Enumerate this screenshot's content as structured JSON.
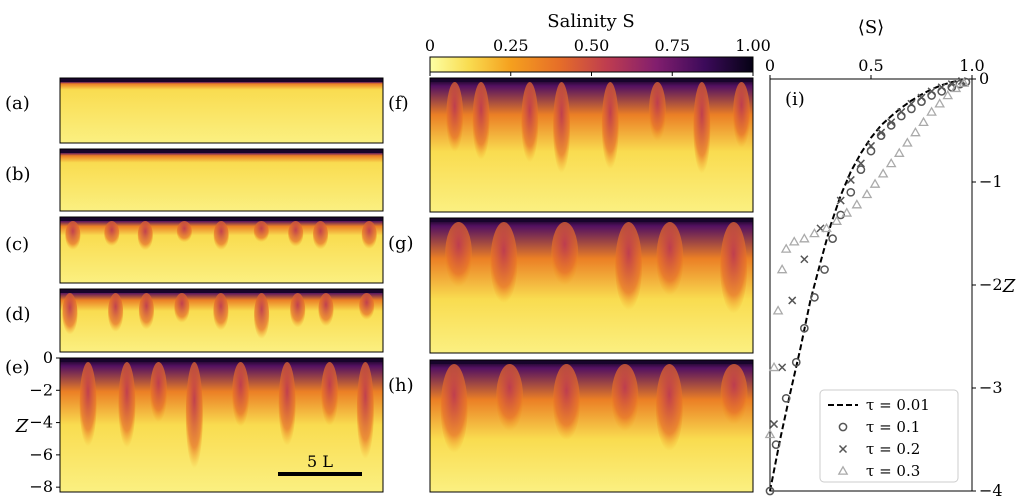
{
  "colorbar": {
    "title": "Salinity S",
    "ticks": [
      "0",
      "0.25",
      "0.50",
      "0.75",
      "1.00"
    ],
    "tick_values": [
      0,
      0.25,
      0.5,
      0.75,
      1.0
    ]
  },
  "panels": [
    {
      "label": "(a)",
      "seed": 1,
      "stage": 0
    },
    {
      "label": "(b)",
      "seed": 2,
      "stage": 1
    },
    {
      "label": "(c)",
      "seed": 3,
      "stage": 2
    },
    {
      "label": "(d)",
      "seed": 4,
      "stage": 3
    },
    {
      "label": "(e)",
      "seed": 5,
      "stage": 4
    },
    {
      "label": "(f)",
      "seed": 6,
      "stage": 5
    },
    {
      "label": "(g)",
      "seed": 7,
      "stage": 6
    },
    {
      "label": "(h)",
      "seed": 8,
      "stage": 7
    }
  ],
  "panel_e_axis": {
    "ylabel": "Z",
    "ticks": [
      "0",
      "−2",
      "−4",
      "−6",
      "−8"
    ],
    "tick_values": [
      0,
      -2,
      -4,
      -6,
      -8
    ],
    "scalebar_label": "5 L"
  },
  "chart_data": {
    "type": "scatter",
    "panel_label": "(i)",
    "xlabel": "⟨S⟩",
    "ylabel": "Z",
    "xlim": [
      0,
      1.0
    ],
    "ylim": [
      -4,
      0
    ],
    "xticks": [
      0,
      0.5,
      1.0
    ],
    "xtick_labels": [
      "0",
      "0.5",
      "1.0"
    ],
    "yticks": [
      0,
      -1,
      -2,
      -3,
      -4
    ],
    "ytick_labels": [
      "0",
      "−1",
      "−2",
      "−3",
      "−4"
    ],
    "legend_position": "bottom-right",
    "series": [
      {
        "name": "τ = 0.01",
        "style": "dashed-line",
        "color": "#000000",
        "x": [
          0.0,
          0.05,
          0.1,
          0.15,
          0.2,
          0.25,
          0.3,
          0.35,
          0.4,
          0.45,
          0.5,
          0.55,
          0.6,
          0.65,
          0.7,
          0.75,
          0.8,
          0.85,
          0.9,
          0.95,
          0.98
        ],
        "y": [
          -4.0,
          -3.5,
          -3.05,
          -2.62,
          -2.15,
          -1.78,
          -1.42,
          -1.13,
          -0.9,
          -0.72,
          -0.57,
          -0.45,
          -0.36,
          -0.28,
          -0.21,
          -0.15,
          -0.1,
          -0.06,
          -0.03,
          -0.01,
          0.0
        ]
      },
      {
        "name": "τ = 0.1",
        "style": "circle",
        "color": "#555555",
        "x": [
          0.0,
          0.03,
          0.08,
          0.13,
          0.17,
          0.22,
          0.27,
          0.31,
          0.35,
          0.4,
          0.45,
          0.5,
          0.55,
          0.6,
          0.65,
          0.7,
          0.75,
          0.8,
          0.85,
          0.9,
          0.94,
          0.97
        ],
        "y": [
          -4.0,
          -3.55,
          -3.1,
          -2.75,
          -2.42,
          -2.12,
          -1.85,
          -1.55,
          -1.32,
          -1.1,
          -0.88,
          -0.7,
          -0.55,
          -0.45,
          -0.36,
          -0.29,
          -0.22,
          -0.16,
          -0.12,
          -0.08,
          -0.05,
          -0.03
        ]
      },
      {
        "name": "τ = 0.2",
        "style": "cross",
        "color": "#555555",
        "x": [
          0.02,
          0.06,
          0.11,
          0.17,
          0.25,
          0.35,
          0.4,
          0.45,
          0.5,
          0.55,
          0.6,
          0.65,
          0.7,
          0.75,
          0.8,
          0.85,
          0.9,
          0.95
        ],
        "y": [
          -3.35,
          -2.8,
          -2.15,
          -1.75,
          -1.45,
          -1.18,
          -0.98,
          -0.82,
          -0.65,
          -0.52,
          -0.42,
          -0.32,
          -0.24,
          -0.18,
          -0.12,
          -0.08,
          -0.05,
          -0.02
        ]
      },
      {
        "name": "τ = 0.3",
        "style": "triangle",
        "color": "#aaaaaa",
        "x": [
          0.0,
          0.02,
          0.04,
          0.06,
          0.08,
          0.12,
          0.17,
          0.22,
          0.28,
          0.33,
          0.38,
          0.43,
          0.48,
          0.52,
          0.56,
          0.6,
          0.64,
          0.68,
          0.72,
          0.76,
          0.8,
          0.84,
          0.88,
          0.92,
          0.96
        ],
        "y": [
          -3.45,
          -2.8,
          -2.25,
          -1.85,
          -1.65,
          -1.58,
          -1.55,
          -1.5,
          -1.45,
          -1.38,
          -1.3,
          -1.22,
          -1.12,
          -1.02,
          -0.92,
          -0.82,
          -0.72,
          -0.62,
          -0.52,
          -0.42,
          -0.32,
          -0.24,
          -0.16,
          -0.09,
          -0.04
        ]
      }
    ]
  }
}
